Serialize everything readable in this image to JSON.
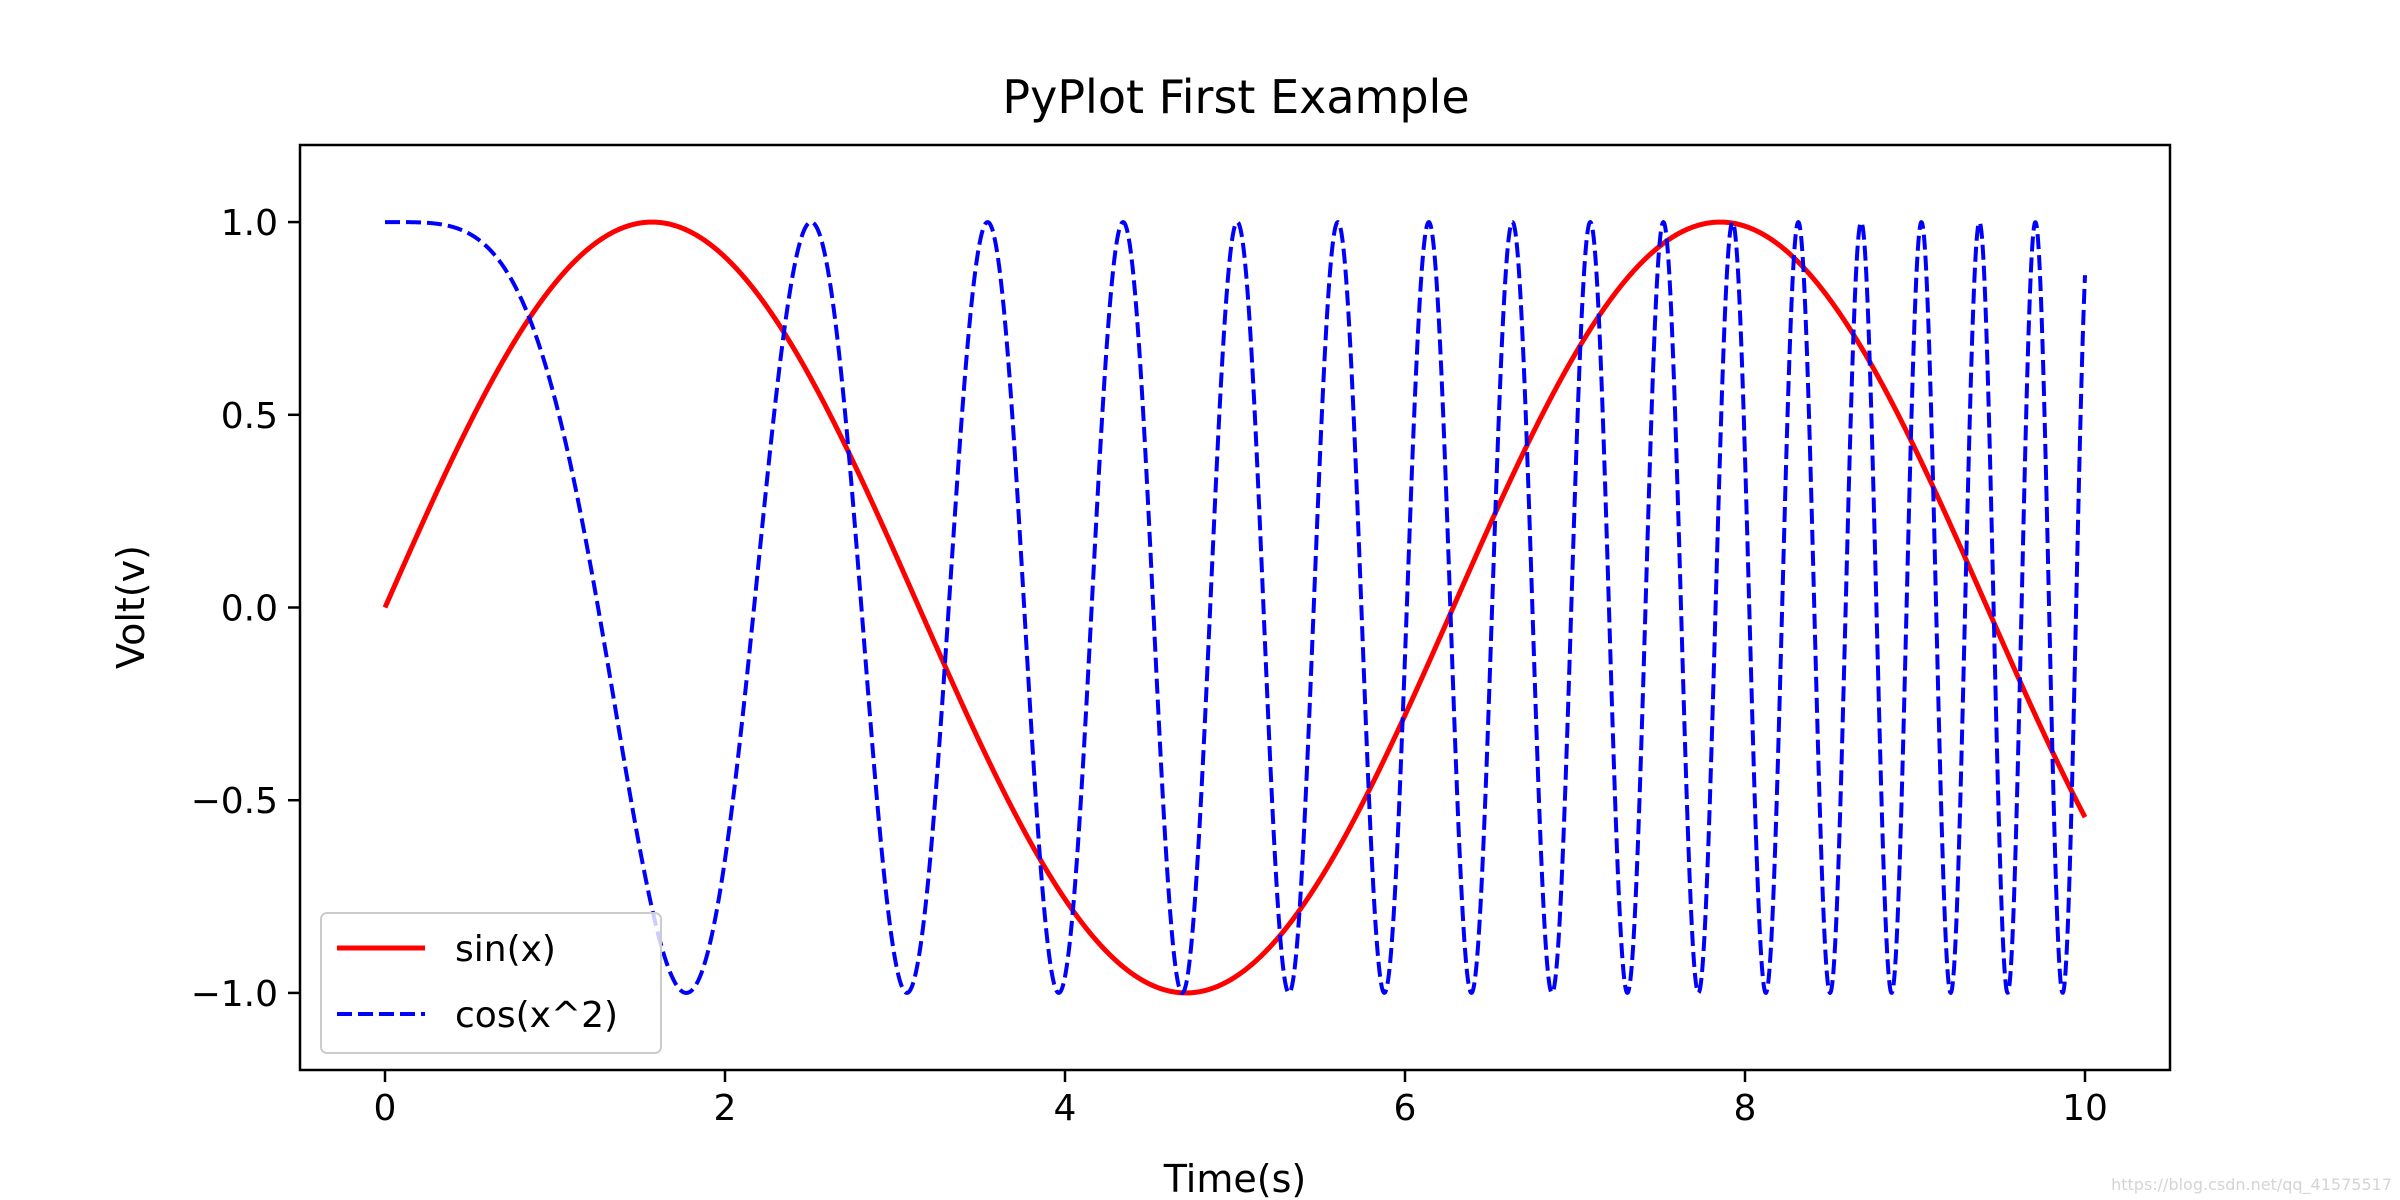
{
  "chart_data": {
    "type": "line",
    "title": "PyPlot First Example",
    "xlabel": "Time(s)",
    "ylabel": "Volt(v)",
    "xlim": [
      -0.5,
      10.5
    ],
    "ylim": [
      -1.2,
      1.2
    ],
    "xticks": [
      0,
      2,
      4,
      6,
      8,
      10
    ],
    "xtick_labels": [
      "0",
      "2",
      "4",
      "6",
      "8",
      "10"
    ],
    "yticks": [
      1.0,
      0.5,
      0.0,
      -0.5,
      -1.0
    ],
    "ytick_labels": [
      "1.0",
      "0.5",
      "0.0",
      "−0.5",
      "−1.0"
    ],
    "grid": false,
    "legend_position": "lower-left",
    "series": [
      {
        "name": "sin(x)",
        "color": "#ff0000",
        "line_style": "solid",
        "function": "sin(x)",
        "x_range": [
          0,
          10
        ]
      },
      {
        "name": "cos(x^2)",
        "color": "#0000ff",
        "line_style": "dashed",
        "function": "cos(x^2)",
        "x_range": [
          0,
          10
        ]
      }
    ]
  },
  "watermark": "https://blog.csdn.net/qq_41575517"
}
